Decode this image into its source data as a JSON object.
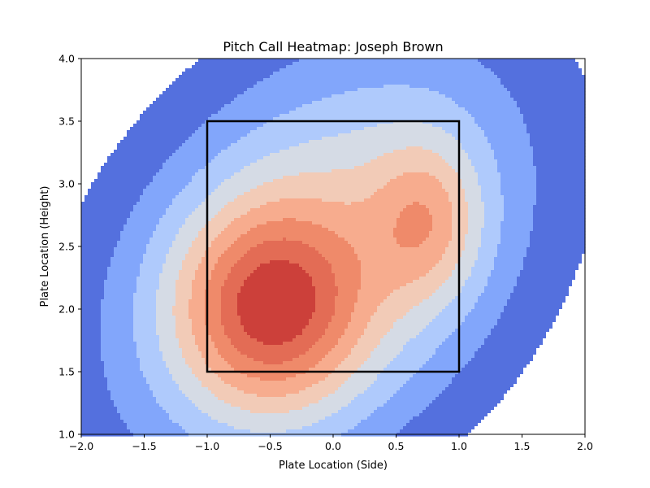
{
  "chart_data": {
    "type": "heatmap",
    "subtype": "filled-contour (kde)",
    "title": "Pitch Call Heatmap: Joseph Brown",
    "xlabel": "Plate Location (Side)",
    "ylabel": "Plate Location (Height)",
    "xlim": [
      -2.0,
      2.0
    ],
    "ylim": [
      1.0,
      4.0
    ],
    "x_ticks": [
      -2.0,
      -1.5,
      -1.0,
      -0.5,
      0.0,
      0.5,
      1.0,
      1.5,
      2.0
    ],
    "x_tick_labels": [
      "−2.0",
      "−1.5",
      "−1.0",
      "−0.5",
      "0.0",
      "0.5",
      "1.0",
      "1.5",
      "2.0"
    ],
    "y_ticks": [
      1.0,
      1.5,
      2.0,
      2.5,
      3.0,
      3.5,
      4.0
    ],
    "y_tick_labels": [
      "1.0",
      "1.5",
      "2.0",
      "2.5",
      "3.0",
      "3.5",
      "4.0"
    ],
    "colormap": "coolwarm",
    "level_colors": [
      "#ffffff",
      "#5470de",
      "#82a6fb",
      "#afcafc",
      "#d5dbe5",
      "#f2cbb7",
      "#f7ac8e",
      "#ef8a6a",
      "#e36c55",
      "#cc403a"
    ],
    "density_peaks": [
      {
        "x": -0.5,
        "y": 2.0,
        "weight": 1.0,
        "sx": 0.5,
        "sy": 0.55
      },
      {
        "x": 0.75,
        "y": 2.7,
        "weight": 0.55,
        "sx": 0.3,
        "sy": 0.45
      }
    ],
    "background_spread": {
      "x": -0.1,
      "y": 2.4,
      "sx": 1.15,
      "sy": 1.2,
      "rho": 0.35
    },
    "strike_zone": {
      "x": [
        -1.0,
        1.0
      ],
      "y": [
        1.5,
        3.5
      ],
      "color": "#000000"
    },
    "grid": false,
    "legend": "none"
  }
}
